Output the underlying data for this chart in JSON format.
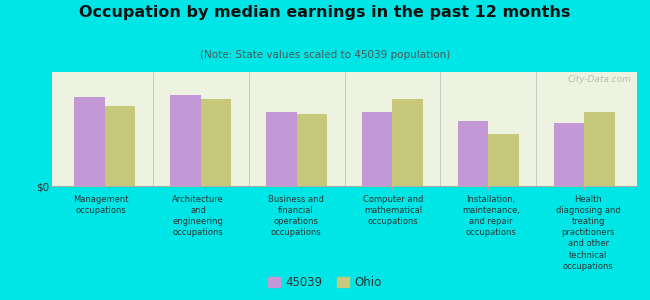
{
  "title": "Occupation by median earnings in the past 12 months",
  "subtitle": "(Note: State values scaled to 45039 population)",
  "categories": [
    "Management\noccupations",
    "Architecture\nand\nengineering\noccupations",
    "Business and\nfinancial\noperations\noccupations",
    "Computer and\nmathematical\noccupations",
    "Installation,\nmaintenance,\nand repair\noccupations",
    "Health\ndiagnosing and\ntreating\npractitioners\nand other\ntechnical\noccupations"
  ],
  "series1_label": "45039",
  "series2_label": "Ohio",
  "series1_values": [
    0.82,
    0.84,
    0.68,
    0.68,
    0.6,
    0.58
  ],
  "series2_values": [
    0.74,
    0.8,
    0.66,
    0.8,
    0.48,
    0.68
  ],
  "bar_color1": "#c299d6",
  "bar_color2": "#c8c87a",
  "background_color": "#00e5e5",
  "plot_bg_color": "#eef2e0",
  "watermark": "City-Data.com",
  "ylabel": "$0",
  "bar_width": 0.32,
  "title_fontsize": 11.5,
  "subtitle_fontsize": 7.5,
  "label_fontsize": 6.0,
  "legend_fontsize": 8.5
}
